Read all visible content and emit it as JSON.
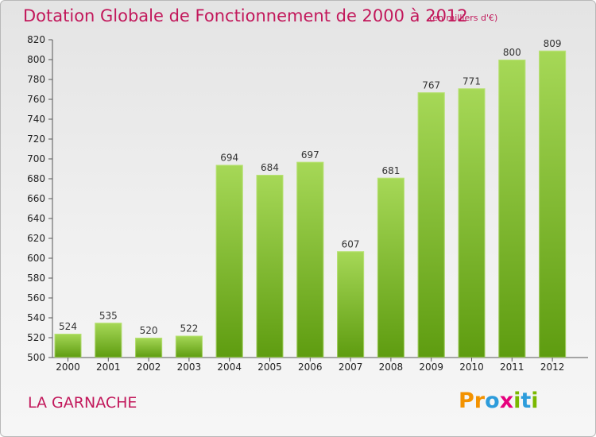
{
  "header": {
    "title": "Dotation Globale de Fonctionnement de 2000 à 2012",
    "unit_note": "(en milliers d'€)"
  },
  "footer": {
    "location": "LA GARNACHE",
    "brand_letters": [
      {
        "char": "P",
        "color": "#f39200"
      },
      {
        "char": "r",
        "color": "#f39200"
      },
      {
        "char": "o",
        "color": "#2d9cdb"
      },
      {
        "char": "x",
        "color": "#e6007e"
      },
      {
        "char": "i",
        "color": "#7ab800"
      },
      {
        "char": "t",
        "color": "#2d9cdb"
      },
      {
        "char": "i",
        "color": "#7ab800"
      }
    ]
  },
  "colors": {
    "bar_top": "#a6d857",
    "bar_bottom": "#5e9c10",
    "accent": "#c2185b"
  },
  "chart_data": {
    "type": "bar",
    "categories": [
      "2000",
      "2001",
      "2002",
      "2003",
      "2004",
      "2005",
      "2006",
      "2007",
      "2008",
      "2009",
      "2010",
      "2011",
      "2012"
    ],
    "values": [
      524,
      535,
      520,
      522,
      694,
      684,
      697,
      607,
      681,
      767,
      771,
      800,
      809
    ],
    "data_labels": [
      "524",
      "535",
      "520",
      "522",
      "694",
      "684",
      "697",
      "607",
      "681",
      "767",
      "771",
      "800",
      "809"
    ],
    "title": "Dotation Globale de Fonctionnement de 2000 à 2012",
    "subtitle": "(en milliers d'€)",
    "xlabel": "",
    "ylabel": "",
    "ylim": [
      500,
      820
    ],
    "yticks": [
      500,
      520,
      540,
      560,
      580,
      600,
      620,
      640,
      660,
      680,
      700,
      720,
      740,
      760,
      780,
      800,
      820
    ],
    "ytick_labels": [
      "500",
      "520",
      "540",
      "560",
      "580",
      "600",
      "620",
      "640",
      "660",
      "680",
      "700",
      "720",
      "740",
      "760",
      "780",
      "800",
      "820"
    ],
    "grid": false,
    "legend": "none"
  }
}
